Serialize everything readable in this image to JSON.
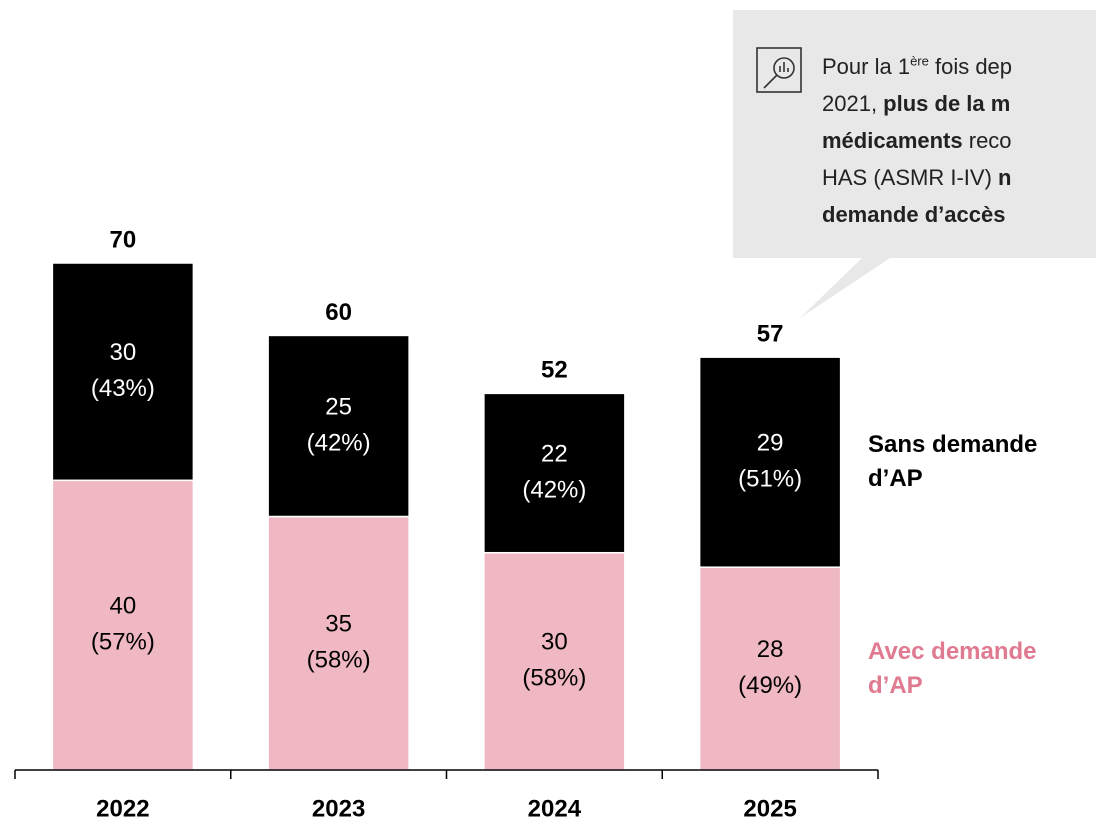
{
  "chart_data": {
    "type": "stacked_bar",
    "categories": [
      "2022",
      "2023",
      "2024",
      "2025"
    ],
    "series": [
      {
        "name": "Avec demande d’AP",
        "color": "#f0b8c2",
        "label_color": "#e07a90",
        "text_color": "#000000",
        "values": [
          40,
          35,
          30,
          28
        ],
        "percent_labels": [
          "(57%)",
          "(58%)",
          "(58%)",
          "(49%)"
        ]
      },
      {
        "name": "Sans demande d’AP",
        "color": "#000000",
        "label_color": "#000000",
        "text_color": "#ffffff",
        "values": [
          30,
          25,
          22,
          29
        ],
        "percent_labels": [
          "(43%)",
          "(42%)",
          "(42%)",
          "(51%)"
        ]
      }
    ],
    "totals": [
      70,
      60,
      52,
      57
    ],
    "ylim": [
      0,
      70
    ],
    "annotation": {
      "lines": [
        [
          {
            "text": "Pour la 1"
          },
          {
            "text": "ère",
            "sup": true
          },
          {
            "text": " fois dep"
          }
        ],
        [
          {
            "text": "2021, "
          },
          {
            "text": "plus de la m",
            "bold": true
          }
        ],
        [
          {
            "text": "médicaments",
            "bold": true
          },
          {
            "text": " reco"
          }
        ],
        [
          {
            "text": "HAS (ASMR I-IV) "
          },
          {
            "text": "n",
            "bold": true
          }
        ],
        [
          {
            "text": "demande d’accès",
            "bold": true
          }
        ]
      ]
    }
  }
}
